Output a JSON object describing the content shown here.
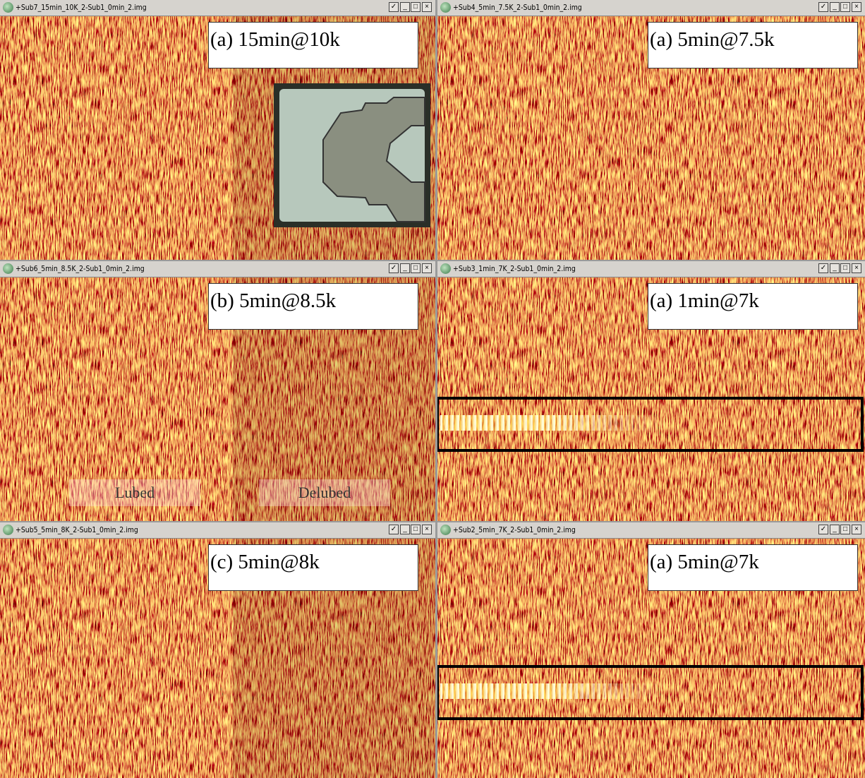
{
  "windows": [
    {
      "title": "+Sub7_15min_10K_2-Sub1_0min_2.img",
      "label": "(a) 15min@10k"
    },
    {
      "title": "+Sub4_5min_7.5K_2-Sub1_0min_2.img",
      "label": "(a) 5min@7.5k"
    },
    {
      "title": "+Sub6_5min_8.5K_2-Sub1_0min_2.img",
      "label": "(b) 5min@8.5k",
      "regions": [
        "Lubed",
        "Delubed"
      ]
    },
    {
      "title": "+Sub3_1min_7K_2-Sub1_0min_2.img",
      "label": "(a) 1min@7k"
    },
    {
      "title": "+Sub5_5min_8K_2-Sub1_0min_2.img",
      "label": "(c) 5min@8k"
    },
    {
      "title": "+Sub2_5min_7K_2-Sub1_0min_2.img",
      "label": "(a) 5min@7k"
    }
  ]
}
